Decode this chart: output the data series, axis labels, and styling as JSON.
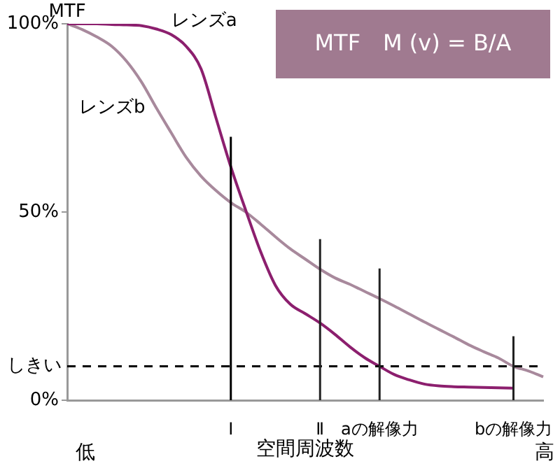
{
  "chart_data": {
    "type": "line",
    "title": "MTF　M (v) = B/A",
    "ylabel": "MTF",
    "xlabel": "空間周波数",
    "marker": "none",
    "categories": [
      null,
      null,
      null,
      null,
      null,
      null,
      null,
      null,
      null,
      null,
      null,
      "Ⅰ",
      null,
      null,
      null,
      null,
      null,
      "Ⅱ",
      null,
      null,
      null,
      "aの解像力",
      null,
      null,
      null,
      null,
      null,
      null,
      null,
      null,
      "bの解像力",
      null,
      null
    ],
    "ylim": [
      0,
      100
    ],
    "yticks": [
      {
        "value": 0,
        "label": "0%"
      },
      {
        "value": 50,
        "label": "50%"
      },
      {
        "value": 100,
        "label": "100%"
      }
    ],
    "series": [
      {
        "name": "レンズa",
        "color": "#8c1f6e",
        "values": [
          100,
          100,
          100,
          99.8,
          99.7,
          99.5,
          98.6,
          97.1,
          94,
          88,
          75,
          62,
          50.5,
          39.5,
          30.5,
          25.5,
          23,
          20.5,
          17.5,
          14.2,
          11.3,
          9,
          6.8,
          5.4,
          4.3,
          3.8,
          3.6,
          3.5,
          3.4,
          3.3,
          3.2,
          null,
          null
        ]
      },
      {
        "name": "レンズb",
        "color": "#a8899c",
        "values": [
          100,
          98.5,
          96.5,
          94,
          90,
          84.5,
          77.6,
          71,
          64.5,
          59.5,
          55.7,
          52.5,
          50,
          46.8,
          43.4,
          40.2,
          37.5,
          34.8,
          32.5,
          30.8,
          28.9,
          27,
          25,
          22.9,
          20.8,
          18.8,
          16.8,
          14.7,
          12.9,
          11.2,
          9,
          7.8,
          6.2
        ]
      }
    ],
    "ref_lines": [
      {
        "axis": "y",
        "value": 9,
        "label": "しきい",
        "line_style": "dashed",
        "color": "#000000"
      },
      {
        "axis": "x",
        "value": "Ⅰ",
        "label": null,
        "color": "#000000"
      },
      {
        "axis": "x",
        "value": "Ⅱ",
        "label": null,
        "color": "#222222"
      },
      {
        "axis": "x",
        "value": "aの解像力",
        "label": null,
        "color": "#222222"
      },
      {
        "axis": "x",
        "value": "bの解像力",
        "label": null,
        "color": "#222222"
      }
    ],
    "annotations": [
      "低",
      "高"
    ]
  }
}
